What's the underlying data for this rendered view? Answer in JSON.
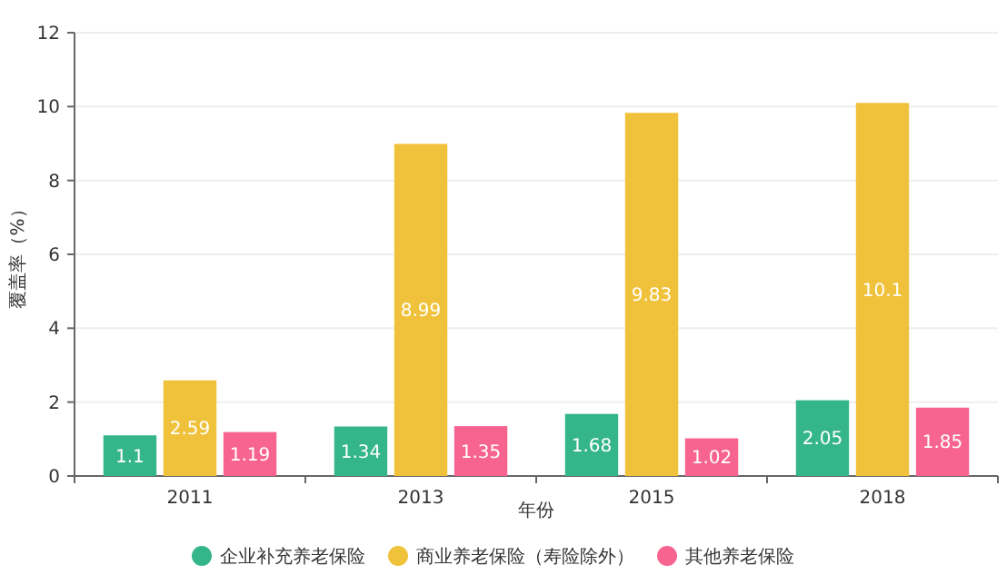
{
  "chart_data": {
    "type": "bar",
    "xlabel": "年份",
    "ylabel": "覆盖率（%）",
    "categories": [
      "2011",
      "2013",
      "2015",
      "2018"
    ],
    "series": [
      {
        "name": "企业补充养老保险",
        "color": "#35b58a",
        "values": [
          1.1,
          1.34,
          1.68,
          2.05
        ]
      },
      {
        "name": "商业养老保险（寿险除外）",
        "color": "#f0c23b",
        "values": [
          2.59,
          8.99,
          9.83,
          10.1
        ]
      },
      {
        "name": "其他养老保险",
        "color": "#f7648f",
        "values": [
          1.19,
          1.35,
          1.02,
          1.85
        ]
      }
    ],
    "ylim": [
      0,
      12
    ],
    "yticks": [
      0,
      2,
      4,
      6,
      8,
      10,
      12
    ],
    "grid": "y",
    "legend": "bottom",
    "data_labels": true
  }
}
